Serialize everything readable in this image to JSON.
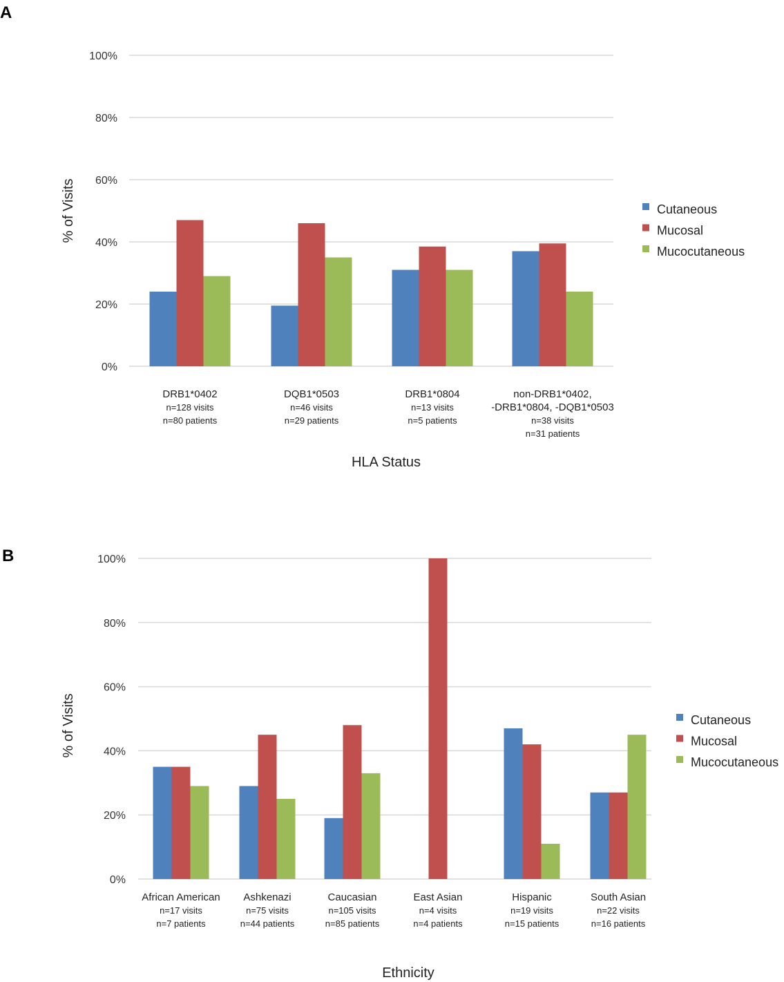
{
  "chart_data": [
    {
      "panel": "A",
      "type": "bar",
      "ylabel": "% of Visits",
      "xlabel": "HLA Status",
      "ylim": [
        0,
        100
      ],
      "yticks": [
        "0%",
        "20%",
        "40%",
        "60%",
        "80%",
        "100%"
      ],
      "grid": true,
      "legend_position": "right",
      "categories": [
        {
          "lines": [
            "DRB1*0402",
            "n=128 visits",
            "n=80 patients"
          ]
        },
        {
          "lines": [
            "DQB1*0503",
            "n=46 visits",
            "n=29 patients"
          ]
        },
        {
          "lines": [
            "DRB1*0804",
            "n=13 visits",
            "n=5 patients"
          ]
        },
        {
          "lines": [
            "non-DRB1*0402,",
            "-DRB1*0804, -DQB1*0503",
            "n=38 visits",
            "n=31 patients"
          ]
        }
      ],
      "series": [
        {
          "name": "Cutaneous",
          "color": "#4f81bd",
          "values": [
            24,
            19.5,
            31,
            37
          ]
        },
        {
          "name": "Mucosal",
          "color": "#c0504d",
          "values": [
            47,
            46,
            38.5,
            39.5
          ]
        },
        {
          "name": "Mucocutaneous",
          "color": "#9bbb59",
          "values": [
            29,
            35,
            31,
            24
          ]
        }
      ]
    },
    {
      "panel": "B",
      "type": "bar",
      "ylabel": "% of Visits",
      "xlabel": "Ethnicity",
      "ylim": [
        0,
        100
      ],
      "yticks": [
        "0%",
        "20%",
        "40%",
        "60%",
        "80%",
        "100%"
      ],
      "grid": true,
      "legend_position": "right",
      "categories": [
        {
          "lines": [
            "African American",
            "n=17 visits",
            "n=7 patients"
          ]
        },
        {
          "lines": [
            "Ashkenazi",
            "n=75 visits",
            "n=44 patients"
          ]
        },
        {
          "lines": [
            "Caucasian",
            "n=105 visits",
            "n=85 patients"
          ]
        },
        {
          "lines": [
            "East Asian",
            "n=4 visits",
            "n=4 patients"
          ]
        },
        {
          "lines": [
            "Hispanic",
            "n=19 visits",
            "n=15 patients"
          ]
        },
        {
          "lines": [
            "South Asian",
            "n=22 visits",
            "n=16 patients"
          ]
        }
      ],
      "series": [
        {
          "name": "Cutaneous",
          "color": "#4f81bd",
          "values": [
            35,
            29,
            19,
            0,
            47,
            27
          ]
        },
        {
          "name": "Mucosal",
          "color": "#c0504d",
          "values": [
            35,
            45,
            48,
            100,
            42,
            27
          ]
        },
        {
          "name": "Mucocutaneous",
          "color": "#9bbb59",
          "values": [
            29,
            25,
            33,
            0,
            11,
            45
          ]
        }
      ]
    }
  ]
}
